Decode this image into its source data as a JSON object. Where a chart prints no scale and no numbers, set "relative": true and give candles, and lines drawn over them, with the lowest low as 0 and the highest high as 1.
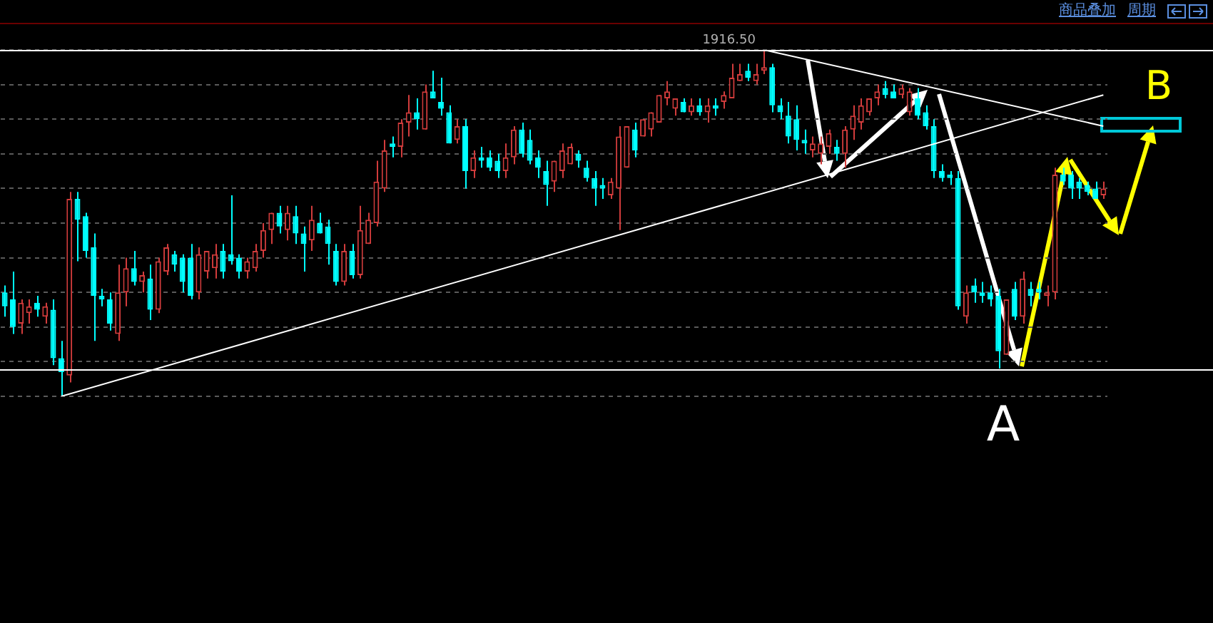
{
  "chart_data": {
    "type": "candlestick",
    "relative": true,
    "legend": false,
    "grid": "y",
    "categories": [
      null,
      null,
      null,
      null,
      null,
      null,
      null,
      null,
      null,
      null,
      null,
      null,
      null,
      null,
      null,
      null,
      null,
      null,
      null,
      null,
      null,
      null,
      null,
      null,
      null,
      null,
      null,
      null,
      null,
      null,
      null,
      null,
      null,
      null,
      null,
      null,
      null,
      null,
      null,
      null,
      null,
      null,
      null,
      null,
      null,
      null,
      null,
      null,
      null,
      null,
      null,
      null,
      null,
      null,
      null,
      null,
      null,
      null,
      null,
      null,
      null,
      null,
      null,
      null,
      null,
      null,
      null,
      null,
      null,
      null,
      null,
      null,
      null,
      null,
      null,
      null,
      null,
      null,
      null,
      null,
      null,
      null,
      null,
      null,
      null,
      null,
      null,
      null,
      null,
      null,
      null,
      null,
      null,
      null,
      null,
      null,
      null,
      null,
      null,
      null,
      null,
      null,
      null,
      null,
      null,
      null,
      null,
      null,
      null,
      null,
      null,
      null,
      null,
      null,
      null,
      null,
      null,
      null,
      null,
      null,
      null,
      null,
      null,
      null,
      null,
      null,
      null,
      null,
      null,
      null,
      null,
      null,
      null,
      null,
      null,
      null,
      null
    ],
    "ohlc": [
      [
        0.3,
        0.32,
        0.23,
        0.26
      ],
      [
        0.28,
        0.36,
        0.18,
        0.2
      ],
      [
        0.21,
        0.28,
        0.18,
        0.27
      ],
      [
        0.24,
        0.28,
        0.21,
        0.26
      ],
      [
        0.27,
        0.29,
        0.23,
        0.25
      ],
      [
        0.23,
        0.27,
        0.21,
        0.26
      ],
      [
        0.25,
        0.28,
        0.09,
        0.11
      ],
      [
        0.11,
        0.16,
        0,
        0.07
      ],
      [
        0.06,
        0.59,
        0.04,
        0.57
      ],
      [
        0.57,
        0.59,
        0.39,
        0.51
      ],
      [
        0.52,
        0.53,
        0.4,
        0.42
      ],
      [
        0.43,
        0.47,
        0.16,
        0.29
      ],
      [
        0.29,
        0.31,
        0.26,
        0.28
      ],
      [
        0.28,
        0.3,
        0.19,
        0.21
      ],
      [
        0.18,
        0.38,
        0.16,
        0.3
      ],
      [
        0.3,
        0.4,
        0.26,
        0.37
      ],
      [
        0.37,
        0.42,
        0.32,
        0.33
      ],
      [
        0.33,
        0.36,
        0.3,
        0.35
      ],
      [
        0.34,
        0.38,
        0.22,
        0.25
      ],
      [
        0.25,
        0.4,
        0.24,
        0.39
      ],
      [
        0.36,
        0.44,
        0.35,
        0.43
      ],
      [
        0.41,
        0.42,
        0.36,
        0.38
      ],
      [
        0.4,
        0.41,
        0.3,
        0.33
      ],
      [
        0.4,
        0.44,
        0.28,
        0.29
      ],
      [
        0.3,
        0.43,
        0.28,
        0.41
      ],
      [
        0.36,
        0.42,
        0.34,
        0.42
      ],
      [
        0.37,
        0.44,
        0.34,
        0.41
      ],
      [
        0.42,
        0.44,
        0.34,
        0.36
      ],
      [
        0.41,
        0.58,
        0.38,
        0.39
      ],
      [
        0.4,
        0.41,
        0.34,
        0.36
      ],
      [
        0.36,
        0.4,
        0.34,
        0.39
      ],
      [
        0.37,
        0.44,
        0.36,
        0.42
      ],
      [
        0.42,
        0.5,
        0.4,
        0.48
      ],
      [
        0.48,
        0.53,
        0.44,
        0.53
      ],
      [
        0.53,
        0.55,
        0.47,
        0.49
      ],
      [
        0.48,
        0.55,
        0.45,
        0.53
      ],
      [
        0.52,
        0.55,
        0.44,
        0.47
      ],
      [
        0.47,
        0.49,
        0.36,
        0.44
      ],
      [
        0.45,
        0.55,
        0.42,
        0.51
      ],
      [
        0.5,
        0.53,
        0.47,
        0.47
      ],
      [
        0.49,
        0.51,
        0.38,
        0.44
      ],
      [
        0.42,
        0.44,
        0.32,
        0.33
      ],
      [
        0.33,
        0.44,
        0.32,
        0.42
      ],
      [
        0.42,
        0.44,
        0.34,
        0.35
      ],
      [
        0.35,
        0.55,
        0.34,
        0.48
      ],
      [
        0.44,
        0.53,
        0.44,
        0.51
      ],
      [
        0.5,
        0.68,
        0.49,
        0.62
      ],
      [
        0.6,
        0.74,
        0.59,
        0.71
      ],
      [
        0.73,
        0.75,
        0.69,
        0.72
      ],
      [
        0.72,
        0.8,
        0.69,
        0.79
      ],
      [
        0.79,
        0.87,
        0.75,
        0.82
      ],
      [
        0.82,
        0.86,
        0.77,
        0.8
      ],
      [
        0.77,
        0.9,
        0.77,
        0.88
      ],
      [
        0.88,
        0.94,
        0.86,
        0.86
      ],
      [
        0.85,
        0.92,
        0.81,
        0.83
      ],
      [
        0.82,
        0.84,
        0.73,
        0.73
      ],
      [
        0.74,
        0.8,
        0.73,
        0.78
      ],
      [
        0.78,
        0.8,
        0.6,
        0.65
      ],
      [
        0.65,
        0.71,
        0.63,
        0.69
      ],
      [
        0.69,
        0.72,
        0.66,
        0.68
      ],
      [
        0.69,
        0.71,
        0.65,
        0.66
      ],
      [
        0.68,
        0.7,
        0.63,
        0.65
      ],
      [
        0.65,
        0.73,
        0.63,
        0.69
      ],
      [
        0.69,
        0.78,
        0.67,
        0.77
      ],
      [
        0.77,
        0.79,
        0.69,
        0.7
      ],
      [
        0.74,
        0.77,
        0.67,
        0.68
      ],
      [
        0.69,
        0.71,
        0.63,
        0.66
      ],
      [
        0.65,
        0.68,
        0.55,
        0.61
      ],
      [
        0.62,
        0.68,
        0.59,
        0.68
      ],
      [
        0.65,
        0.73,
        0.63,
        0.71
      ],
      [
        0.67,
        0.73,
        0.67,
        0.72
      ],
      [
        0.7,
        0.71,
        0.66,
        0.68
      ],
      [
        0.66,
        0.68,
        0.62,
        0.63
      ],
      [
        0.63,
        0.65,
        0.55,
        0.6
      ],
      [
        0.61,
        0.63,
        0.57,
        0.6
      ],
      [
        0.58,
        0.63,
        0.57,
        0.62
      ],
      [
        0.6,
        0.78,
        0.48,
        0.75
      ],
      [
        0.66,
        0.78,
        0.66,
        0.78
      ],
      [
        0.77,
        0.79,
        0.69,
        0.71
      ],
      [
        0.75,
        0.8,
        0.75,
        0.8
      ],
      [
        0.77,
        0.82,
        0.75,
        0.82
      ],
      [
        0.79,
        0.87,
        0.79,
        0.87
      ],
      [
        0.86,
        0.91,
        0.84,
        0.88
      ],
      [
        0.83,
        0.86,
        0.81,
        0.86
      ],
      [
        0.85,
        0.86,
        0.82,
        0.82
      ],
      [
        0.82,
        0.86,
        0.81,
        0.84
      ],
      [
        0.84,
        0.86,
        0.81,
        0.82
      ],
      [
        0.82,
        0.86,
        0.79,
        0.84
      ],
      [
        0.84,
        0.86,
        0.81,
        0.83
      ],
      [
        0.85,
        0.88,
        0.83,
        0.87
      ],
      [
        0.86,
        0.96,
        0.86,
        0.92
      ],
      [
        0.91,
        0.96,
        0.91,
        0.93
      ],
      [
        0.94,
        0.96,
        0.91,
        0.92
      ],
      [
        0.91,
        0.96,
        0.9,
        0.93
      ],
      [
        0.94,
        1,
        0.93,
        0.95
      ],
      [
        0.95,
        0.96,
        0.82,
        0.84
      ],
      [
        0.84,
        0.86,
        0.8,
        0.82
      ],
      [
        0.81,
        0.85,
        0.73,
        0.75
      ],
      [
        0.8,
        0.84,
        0.71,
        0.74
      ],
      [
        0.74,
        0.77,
        0.7,
        0.73
      ],
      [
        0.71,
        0.75,
        0.69,
        0.73
      ],
      [
        0.7,
        0.75,
        0.67,
        0.73
      ],
      [
        0.72,
        0.77,
        0.7,
        0.76
      ],
      [
        0.72,
        0.74,
        0.68,
        0.7
      ],
      [
        0.7,
        0.78,
        0.66,
        0.77
      ],
      [
        0.77,
        0.84,
        0.74,
        0.81
      ],
      [
        0.79,
        0.86,
        0.77,
        0.84
      ],
      [
        0.82,
        0.86,
        0.81,
        0.86
      ],
      [
        0.86,
        0.9,
        0.84,
        0.88
      ],
      [
        0.89,
        0.91,
        0.86,
        0.87
      ],
      [
        0.88,
        0.9,
        0.86,
        0.86
      ],
      [
        0.87,
        0.9,
        0.86,
        0.89
      ],
      [
        0.82,
        0.89,
        0.81,
        0.88
      ],
      [
        0.86,
        0.89,
        0.8,
        0.81
      ],
      [
        0.82,
        0.84,
        0.77,
        0.78
      ],
      [
        0.78,
        0.8,
        0.63,
        0.65
      ],
      [
        0.65,
        0.67,
        0.62,
        0.63
      ],
      [
        0.64,
        0.65,
        0.61,
        0.63
      ],
      [
        0.63,
        0.65,
        0.25,
        0.26
      ],
      [
        0.23,
        0.32,
        0.21,
        0.3
      ],
      [
        0.32,
        0.34,
        0.27,
        0.3
      ],
      [
        0.3,
        0.33,
        0.27,
        0.29
      ],
      [
        0.3,
        0.32,
        0.26,
        0.28
      ],
      [
        0.29,
        0.31,
        0.08,
        0.13
      ],
      [
        0.12,
        0.28,
        0.12,
        0.28
      ],
      [
        0.31,
        0.33,
        0.22,
        0.23
      ],
      [
        0.23,
        0.36,
        0.21,
        0.34
      ],
      [
        0.31,
        0.33,
        0.26,
        0.29
      ],
      [
        0.31,
        0.33,
        0.28,
        0.3
      ],
      [
        0.29,
        0.32,
        0.26,
        0.3
      ],
      [
        0.3,
        0.66,
        0.28,
        0.64
      ],
      [
        0.64,
        0.66,
        0.61,
        0.62
      ],
      [
        0.64,
        0.65,
        0.57,
        0.6
      ],
      [
        0.62,
        0.63,
        0.57,
        0.6
      ],
      [
        0.61,
        0.62,
        0.58,
        0.59
      ],
      [
        0.6,
        0.62,
        0.57,
        0.57
      ],
      [
        0.58,
        0.62,
        0.57,
        0.6
      ]
    ],
    "colors": [
      "#00ffff",
      "#00ffff",
      "#d23c3c",
      "#d23c3c",
      "#00ffff",
      "#d23c3c",
      "#00ffff",
      "#00ffff",
      "#d23c3c",
      "#00ffff",
      "#00ffff",
      "#00ffff",
      "#00ffff",
      "#00ffff",
      "#d23c3c",
      "#d23c3c",
      "#00ffff",
      "#d23c3c",
      "#00ffff",
      "#d23c3c",
      "#d23c3c",
      "#00ffff",
      "#00ffff",
      "#00ffff",
      "#d23c3c",
      "#d23c3c",
      "#d23c3c",
      "#00ffff",
      "#00ffff",
      "#00ffff",
      "#d23c3c",
      "#d23c3c",
      "#d23c3c",
      "#d23c3c",
      "#00ffff",
      "#d23c3c",
      "#00ffff",
      "#00ffff",
      "#d23c3c",
      "#00ffff",
      "#00ffff",
      "#00ffff",
      "#d23c3c",
      "#00ffff",
      "#d23c3c",
      "#d23c3c",
      "#d23c3c",
      "#d23c3c",
      "#00ffff",
      "#d23c3c",
      "#d23c3c",
      "#00ffff",
      "#d23c3c",
      "#00ffff",
      "#00ffff",
      "#00ffff",
      "#d23c3c",
      "#00ffff",
      "#d23c3c",
      "#00ffff",
      "#00ffff",
      "#00ffff",
      "#d23c3c",
      "#d23c3c",
      "#00ffff",
      "#00ffff",
      "#00ffff",
      "#00ffff",
      "#d23c3c",
      "#d23c3c",
      "#d23c3c",
      "#00ffff",
      "#00ffff",
      "#00ffff",
      "#00ffff",
      "#d23c3c",
      "#d23c3c",
      "#d23c3c",
      "#00ffff",
      "#d23c3c",
      "#d23c3c",
      "#d23c3c",
      "#d23c3c",
      "#d23c3c",
      "#00ffff",
      "#d23c3c",
      "#00ffff",
      "#d23c3c",
      "#00ffff",
      "#d23c3c",
      "#d23c3c",
      "#d23c3c",
      "#00ffff",
      "#d23c3c",
      "#d23c3c",
      "#00ffff",
      "#00ffff",
      "#00ffff",
      "#00ffff",
      "#00ffff",
      "#d23c3c",
      "#d23c3c",
      "#d23c3c",
      "#00ffff",
      "#d23c3c",
      "#d23c3c",
      "#d23c3c",
      "#d23c3c",
      "#d23c3c",
      "#00ffff",
      "#00ffff",
      "#d23c3c",
      "#d23c3c",
      "#00ffff",
      "#00ffff",
      "#00ffff",
      "#00ffff",
      "#00ffff",
      "#00ffff",
      "#d23c3c",
      "#00ffff",
      "#00ffff",
      "#00ffff",
      "#00ffff",
      "#d23c3c",
      "#00ffff",
      "#d23c3c",
      "#00ffff",
      "#00ffff",
      "#d23c3c",
      "#d23c3c",
      "#00ffff",
      "#00ffff",
      "#00ffff",
      "#00ffff",
      "#00ffff",
      "#d23c3c"
    ],
    "series": [
      {
        "type": "line",
        "color": "#ffffff",
        "values": [
          null,
          null,
          null,
          null,
          null,
          null,
          null,
          0,
          null,
          null,
          null,
          null,
          null,
          null,
          null,
          null,
          null,
          null,
          null,
          null,
          null,
          null,
          null,
          null,
          null,
          null,
          null,
          null,
          null,
          null,
          null,
          null,
          null,
          null,
          null,
          null,
          null,
          null,
          null,
          null,
          null,
          null,
          null,
          null,
          null,
          null,
          null,
          null,
          null,
          null,
          null,
          null,
          null,
          null,
          null,
          null,
          null,
          null,
          null,
          null,
          null,
          null,
          null,
          null,
          null,
          null,
          null,
          null,
          null,
          null,
          null,
          null,
          null,
          null,
          null,
          null,
          null,
          null,
          null,
          null,
          null,
          null,
          null,
          null,
          null,
          null,
          null,
          null,
          null,
          null,
          null,
          null,
          null,
          null,
          null,
          null,
          null,
          null,
          null,
          null,
          null,
          null,
          null,
          null,
          null,
          null,
          null,
          null,
          null,
          null,
          null,
          null,
          null,
          null,
          null,
          null,
          null,
          null,
          null,
          null,
          null,
          null,
          null,
          null,
          null,
          null,
          null,
          null,
          null,
          null,
          null,
          null,
          null,
          null,
          null,
          null,
          0.87
        ]
      },
      {
        "type": "line",
        "color": "#ffffff",
        "values": [
          null,
          null,
          null,
          null,
          null,
          null,
          null,
          null,
          null,
          null,
          null,
          null,
          null,
          null,
          null,
          null,
          null,
          null,
          null,
          null,
          null,
          null,
          null,
          null,
          null,
          null,
          null,
          null,
          null,
          null,
          null,
          null,
          null,
          null,
          null,
          null,
          null,
          null,
          null,
          null,
          null,
          null,
          null,
          null,
          null,
          null,
          null,
          null,
          null,
          null,
          null,
          null,
          null,
          null,
          null,
          null,
          null,
          null,
          null,
          null,
          null,
          null,
          null,
          null,
          null,
          null,
          null,
          null,
          null,
          null,
          null,
          null,
          null,
          null,
          null,
          null,
          null,
          null,
          null,
          null,
          null,
          null,
          null,
          null,
          null,
          null,
          null,
          null,
          null,
          null,
          null,
          null,
          null,
          null,
          1,
          null,
          null,
          null,
          null,
          null,
          null,
          null,
          null,
          null,
          null,
          null,
          null,
          null,
          null,
          null,
          null,
          null,
          null,
          null,
          null,
          null,
          null,
          null,
          null,
          null,
          null,
          null,
          null,
          null,
          null,
          null,
          null,
          null,
          null,
          null,
          null,
          null,
          null,
          null,
          null,
          null,
          0.78
        ]
      }
    ],
    "ref_lines": [
      {
        "axis": "y",
        "value": 1,
        "color": "#ffffff"
      },
      {
        "axis": "y",
        "value": 0.08,
        "color": "#ffffff"
      }
    ],
    "annotations": [
      {
        "text": "1916.50",
        "y": 1
      },
      "A",
      "B",
      "商品叠加",
      "周期"
    ]
  }
}
